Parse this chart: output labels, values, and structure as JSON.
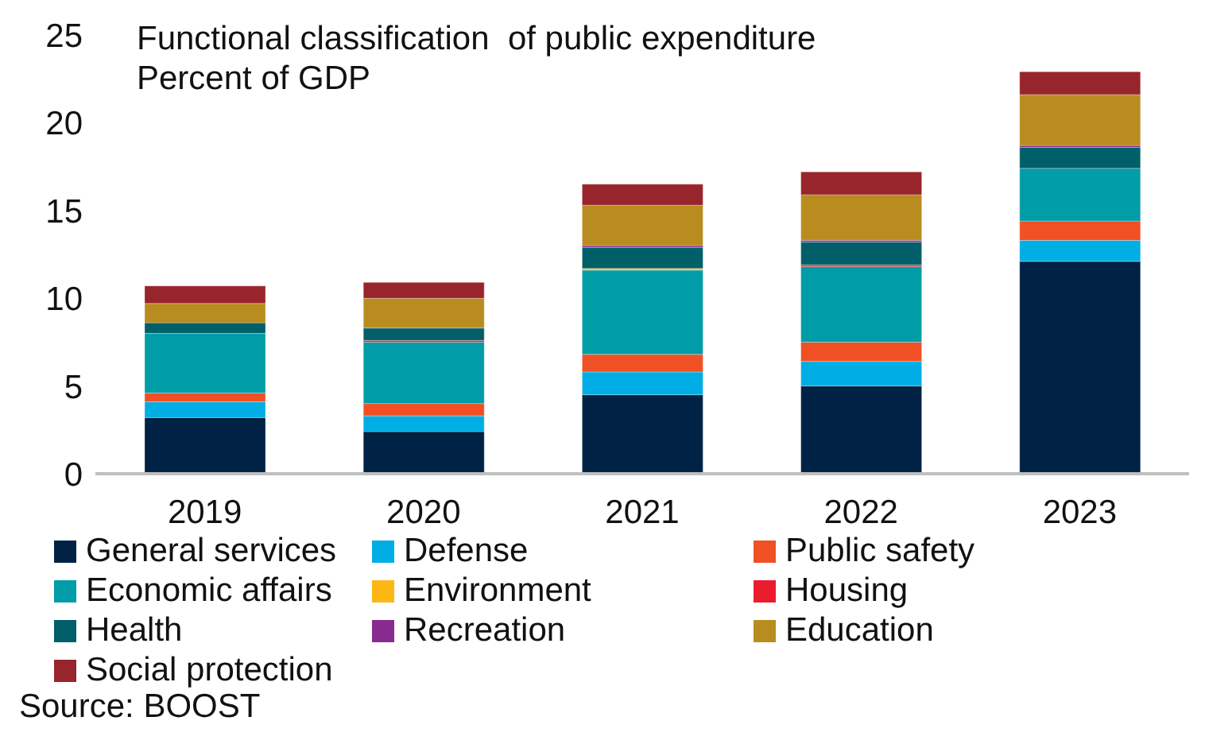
{
  "chart_data": {
    "type": "bar",
    "stacked": true,
    "title": "Functional classification  of public expenditure",
    "subtitle": "Percent of GDP",
    "categories": [
      "2019",
      "2020",
      "2021",
      "2022",
      "2023"
    ],
    "series": [
      {
        "name": "General services",
        "color": "#002244",
        "values": [
          3.2,
          2.4,
          4.5,
          5.0,
          12.1
        ]
      },
      {
        "name": "Defense",
        "color": "#00ade4",
        "values": [
          0.9,
          0.9,
          1.3,
          1.4,
          1.2
        ]
      },
      {
        "name": "Public safety",
        "color": "#f05023",
        "values": [
          0.5,
          0.7,
          1.0,
          1.1,
          1.1
        ]
      },
      {
        "name": "Economic affairs",
        "color": "#009ca7",
        "values": [
          3.4,
          3.5,
          4.8,
          4.3,
          3.0
        ]
      },
      {
        "name": "Environment",
        "color": "#fdb714",
        "values": [
          0,
          0,
          0.1,
          0,
          0
        ]
      },
      {
        "name": "Housing",
        "color": "#eb1c2d",
        "values": [
          0,
          0.1,
          0,
          0.1,
          null
        ]
      },
      {
        "name": "Health",
        "color": "#005f69",
        "values": [
          0.6,
          0.7,
          1.2,
          1.3,
          1.2
        ]
      },
      {
        "name": "Recreation",
        "color": "#872b90",
        "values": [
          0,
          0,
          0.1,
          0.1,
          0.1
        ]
      },
      {
        "name": "Education",
        "color": "#b88c1e",
        "values": [
          1.1,
          1.7,
          2.3,
          2.6,
          2.9
        ]
      },
      {
        "name": "Social protection",
        "color": "#98252b",
        "values": [
          1.0,
          0.9,
          1.2,
          1.3,
          1.3
        ]
      }
    ],
    "ylim": [
      0,
      25
    ],
    "yticks": [
      0,
      5,
      10,
      15,
      20,
      25
    ],
    "grid": false,
    "legend": "bottom",
    "annotations": [
      "Source: BOOST"
    ]
  }
}
